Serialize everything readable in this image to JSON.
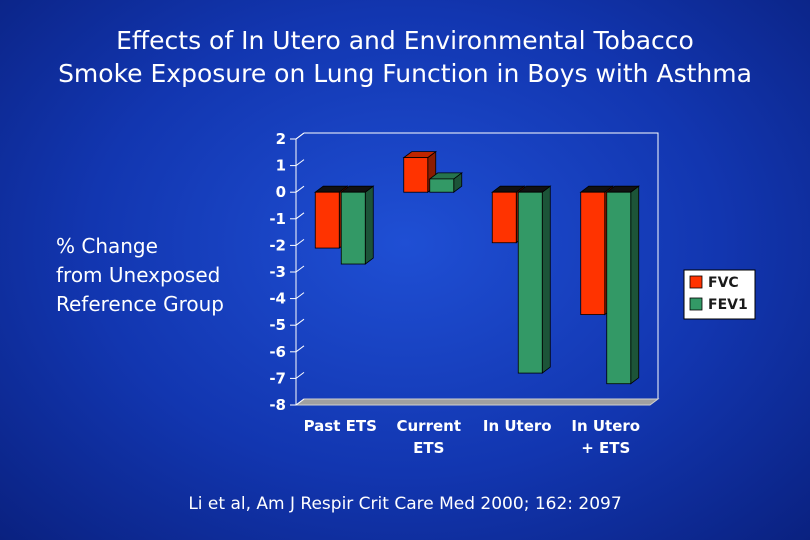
{
  "slide": {
    "title_line1": "Effects of In Utero and Environmental Tobacco",
    "title_line2": "Smoke Exposure on Lung Function in Boys with Asthma",
    "ylabel_line1": "% Change",
    "ylabel_line2": "from Unexposed",
    "ylabel_line3": "Reference Group",
    "citation": "Li et al, Am J Respir Crit Care Med 2000; 162: 2097"
  },
  "colors": {
    "fvc": "#ff3300",
    "fev1": "#339966",
    "legend_bg": "#ffffff",
    "floor": "#a0a0a0"
  },
  "chart_data": {
    "type": "bar",
    "categories": [
      [
        "Past ETS"
      ],
      [
        "Current",
        "ETS"
      ],
      [
        "In Utero"
      ],
      [
        "In Utero",
        "+ ETS"
      ]
    ],
    "series": [
      {
        "name": "FVC",
        "values": [
          -2.1,
          1.3,
          -1.9,
          -4.6
        ]
      },
      {
        "name": "FEV1",
        "values": [
          -2.7,
          0.5,
          -6.8,
          -7.2
        ]
      }
    ],
    "ylim": [
      -8,
      2
    ],
    "yticks": [
      2,
      1,
      0,
      -1,
      -2,
      -3,
      -4,
      -5,
      -6,
      -7,
      -8
    ],
    "legend_position": "right",
    "grid": false
  }
}
